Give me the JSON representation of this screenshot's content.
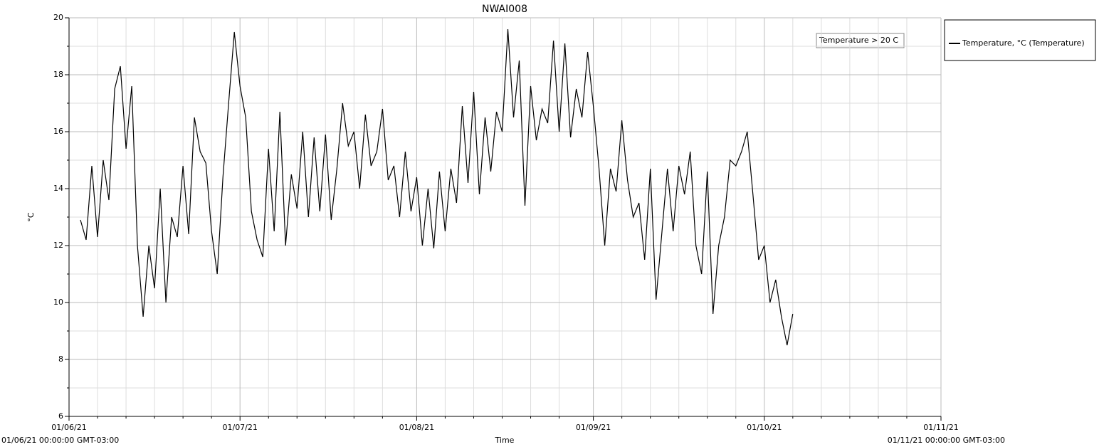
{
  "chart_data": {
    "type": "line",
    "title": "NWAI008",
    "x_label": "Time",
    "y_label": "°C",
    "x_range_labels": [
      "01/06/21 00:00:00 GMT-03:00",
      "01/11/21 00:00:00 GMT-03:00"
    ],
    "annotation": "Temperature > 20 C",
    "x": [
      "03/06/21",
      "04/06/21",
      "05/06/21",
      "06/06/21",
      "07/06/21",
      "08/06/21",
      "09/06/21",
      "10/06/21",
      "11/06/21",
      "12/06/21",
      "13/06/21",
      "14/06/21",
      "15/06/21",
      "16/06/21",
      "17/06/21",
      "18/06/21",
      "19/06/21",
      "20/06/21",
      "21/06/21",
      "22/06/21",
      "23/06/21",
      "24/06/21",
      "25/06/21",
      "26/06/21",
      "27/06/21",
      "28/06/21",
      "29/06/21",
      "30/06/21",
      "01/07/21",
      "02/07/21",
      "03/07/21",
      "04/07/21",
      "05/07/21",
      "06/07/21",
      "07/07/21",
      "08/07/21",
      "09/07/21",
      "10/07/21",
      "11/07/21",
      "12/07/21",
      "13/07/21",
      "14/07/21",
      "15/07/21",
      "16/07/21",
      "17/07/21",
      "18/07/21",
      "19/07/21",
      "20/07/21",
      "21/07/21",
      "22/07/21",
      "23/07/21",
      "24/07/21",
      "25/07/21",
      "26/07/21",
      "27/07/21",
      "28/07/21",
      "29/07/21",
      "30/07/21",
      "31/07/21",
      "01/08/21",
      "02/08/21",
      "03/08/21",
      "04/08/21",
      "05/08/21",
      "06/08/21",
      "07/08/21",
      "08/08/21",
      "09/08/21",
      "10/08/21",
      "11/08/21",
      "12/08/21",
      "13/08/21",
      "14/08/21",
      "15/08/21",
      "16/08/21",
      "17/08/21",
      "18/08/21",
      "19/08/21",
      "20/08/21",
      "21/08/21",
      "22/08/21",
      "23/08/21",
      "24/08/21",
      "25/08/21",
      "26/08/21",
      "27/08/21",
      "28/08/21",
      "29/08/21",
      "30/08/21",
      "31/08/21",
      "01/09/21",
      "02/09/21",
      "03/09/21",
      "04/09/21",
      "05/09/21",
      "06/09/21",
      "07/09/21",
      "08/09/21",
      "09/09/21",
      "10/09/21",
      "11/09/21",
      "12/09/21",
      "13/09/21",
      "14/09/21",
      "15/09/21",
      "16/09/21",
      "17/09/21",
      "18/09/21",
      "19/09/21",
      "20/09/21",
      "21/09/21",
      "22/09/21",
      "23/09/21",
      "24/09/21",
      "25/09/21",
      "26/09/21",
      "27/09/21",
      "28/09/21",
      "29/09/21",
      "30/09/21",
      "01/10/21",
      "02/10/21",
      "03/10/21",
      "04/10/21",
      "05/10/21",
      "06/10/21"
    ],
    "series": [
      {
        "name": "Temperature, °C (Temperature)",
        "color": "#000000",
        "values": [
          12.9,
          12.2,
          14.8,
          12.3,
          15.0,
          13.6,
          17.5,
          18.3,
          15.4,
          17.6,
          12.0,
          9.5,
          12.0,
          10.5,
          14.0,
          10.0,
          13.0,
          12.3,
          14.8,
          12.4,
          16.5,
          15.3,
          14.9,
          12.5,
          11.0,
          14.4,
          17.0,
          19.5,
          17.6,
          16.5,
          13.2,
          12.2,
          11.6,
          15.4,
          12.5,
          16.7,
          12.0,
          14.5,
          13.3,
          16.0,
          13.0,
          15.8,
          13.2,
          15.9,
          12.9,
          14.7,
          17.0,
          15.5,
          16.0,
          14.0,
          16.6,
          14.8,
          15.3,
          16.8,
          14.3,
          14.8,
          13.0,
          15.3,
          13.2,
          14.4,
          12.0,
          14.0,
          11.9,
          14.6,
          12.5,
          14.7,
          13.5,
          16.9,
          14.2,
          17.4,
          13.8,
          16.5,
          14.6,
          16.7,
          16.0,
          19.6,
          16.5,
          18.5,
          13.4,
          17.6,
          15.7,
          16.8,
          16.3,
          19.2,
          16.0,
          19.1,
          15.8,
          17.5,
          16.5,
          18.8,
          16.9,
          14.7,
          12.0,
          14.7,
          13.9,
          16.4,
          14.3,
          13.0,
          13.5,
          11.5,
          14.7,
          10.1,
          12.4,
          14.7,
          12.5,
          14.8,
          13.8,
          15.3,
          12.0,
          11.0,
          14.6,
          9.6,
          12.0,
          13.0,
          15.0,
          14.8,
          15.3,
          16.0,
          13.8,
          11.5,
          12.0,
          10.0,
          10.8,
          9.5,
          8.5,
          9.6
        ]
      }
    ],
    "xlim": [
      "01/06/21",
      "01/11/21"
    ],
    "xticks": [
      "01/06/21",
      "01/07/21",
      "01/08/21",
      "01/09/21",
      "01/10/21",
      "01/11/21"
    ],
    "ylim": [
      6,
      20
    ],
    "yticks": [
      6,
      8,
      10,
      12,
      14,
      16,
      18,
      20
    ],
    "grid": true,
    "minor_grid": true,
    "legend": "right"
  }
}
